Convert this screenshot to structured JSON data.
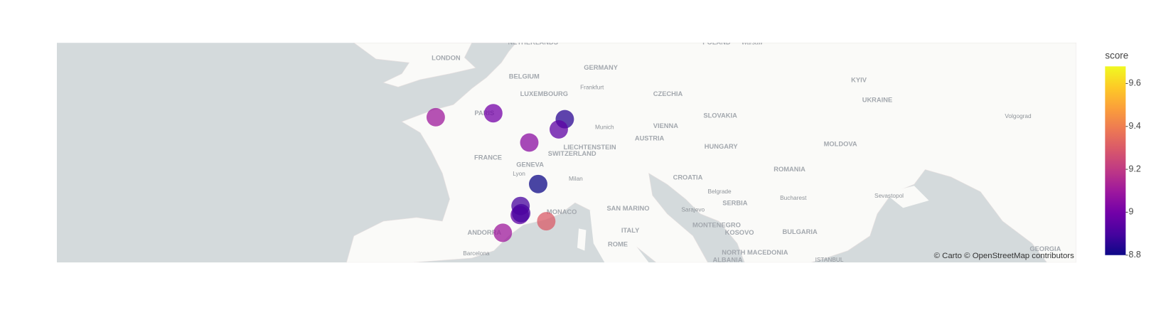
{
  "chart_data": {
    "type": "scatter_map",
    "points": {
      "lat": [
        48.6,
        48.8,
        48.5,
        47.98,
        47.3,
        45.1,
        43.9,
        43.4,
        43.5,
        43.05,
        42.4
      ],
      "lon": [
        -2.05,
        2.36,
        7.84,
        7.38,
        5.12,
        5.8,
        4.45,
        4.39,
        4.5,
        6.42,
        3.09
      ],
      "score": [
        9.1,
        9.0,
        8.85,
        8.95,
        9.05,
        8.8,
        8.9,
        8.95,
        8.9,
        9.3,
        9.1
      ]
    },
    "opacity": 0.75,
    "colorbar": {
      "title": "score",
      "lim": [
        8.8,
        9.68
      ],
      "ticks": [
        8.8,
        9,
        9.2,
        9.4,
        9.6
      ],
      "colorscale": [
        "#0d0887",
        "#46039f",
        "#7201a8",
        "#9c179e",
        "#bd3786",
        "#d8576b",
        "#ed7953",
        "#fb9f3a",
        "#fdca26",
        "#f0f921"
      ]
    },
    "map_labels": [
      "LONDON",
      "NETHERLANDS",
      "BELGIUM",
      "GERMANY",
      "Frankfurt",
      "LUXEMBOURG",
      "CZECHIA",
      "POLAND",
      "Warsaw",
      "KYIV",
      "UKRAINE",
      "PARIS",
      "SLOVAKIA",
      "Volgograd",
      "Munich",
      "VIENNA",
      "AUSTRIA",
      "MOLDOVA",
      "HUNGARY",
      "LIECHTENSTEIN",
      "SWITZERLAND",
      "FRANCE",
      "GENEVA",
      "Lyon",
      "CROATIA",
      "ROMANIA",
      "Milan",
      "Belgrade",
      "SERBIA",
      "Bucharest",
      "Sevastopol",
      "SAN MARINO",
      "Sarajevo",
      "MONACO",
      "MONTENEGRO",
      "KOSOVO",
      "BULGARIA",
      "ANDORRA",
      "ITALY",
      "ROME",
      "NORTH MACEDONIA",
      "Barcelona",
      "ALBANIA",
      "ISTANBUL",
      "GEORGIA"
    ],
    "attribution": "© Carto © OpenStreetMap contributors"
  }
}
